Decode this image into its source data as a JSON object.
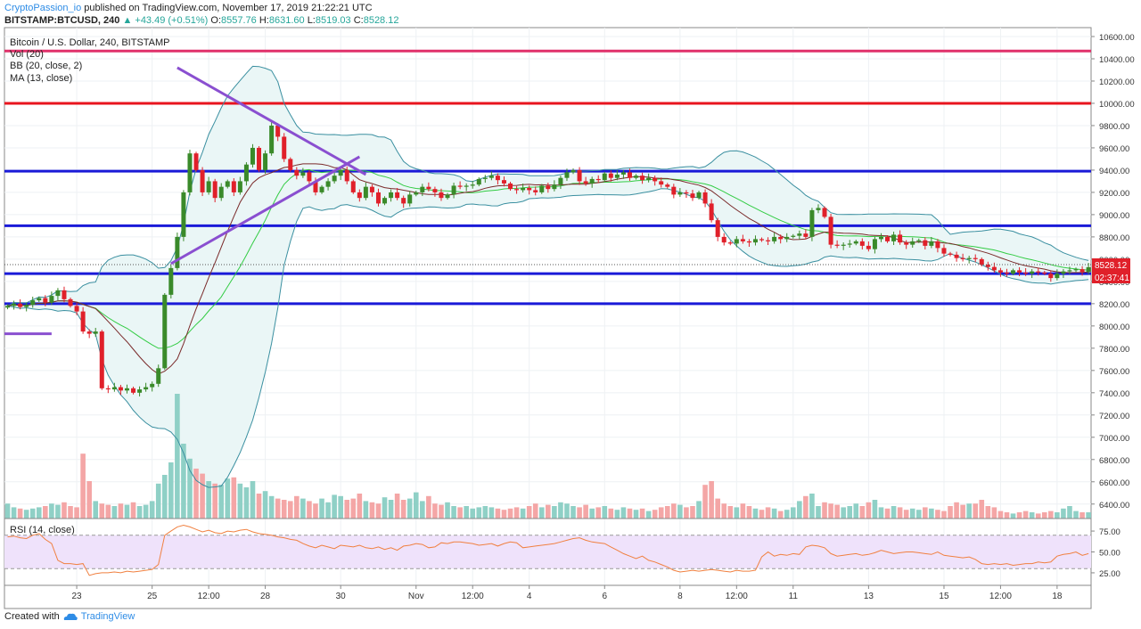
{
  "header": {
    "author": "CryptoPassion_io",
    "published": "published on TradingView.com, November 17, 2019 21:22:21 UTC",
    "symbol": "BITSTAMP:BTCUSD, 240",
    "change": "+43.49 (+0.51%)",
    "open_label": "O:",
    "open": "8557.76",
    "high_label": "H:",
    "high": "8631.60",
    "low_label": "L:",
    "low": "8519.03",
    "close_label": "C:",
    "close": "8528.12"
  },
  "legend": {
    "title": "Bitcoin / U.S. Dollar, 240, BITSTAMP",
    "vol": "Vol (20)",
    "bb": "BB (20, close, 2)",
    "ma": "MA (13, close)",
    "rsi": "RSI (14, close)"
  },
  "price_tag": "8528.12",
  "time_tag": "02:37:41",
  "footer": {
    "created_with": "Created with",
    "brand": "TradingView"
  },
  "colors": {
    "up": "#26a69a",
    "down": "#ef5350",
    "candle_up": "#3a8a2a",
    "candle_down": "#e0202a",
    "support_blue": "#1a1ad8",
    "resistance_red": "#e8141e",
    "resistance_pink": "#e0306a",
    "trendline": "#8a4fd0",
    "ma": "#7a2a2a",
    "bb_mid": "#33cc44",
    "bb_band": "#3a8fa0",
    "rsi_line": "#f08040",
    "rsi_fill": "#efe2fb"
  },
  "chart_data": {
    "type": "candlestick",
    "title": "Bitcoin / U.S. Dollar, 240, BITSTAMP",
    "y_ticks": [
      6400,
      6600,
      6800,
      7000,
      7200,
      7400,
      7600,
      7800,
      8000,
      8200,
      8400,
      8600,
      8800,
      9000,
      9200,
      9400,
      9600,
      9800,
      10000,
      10200,
      10400,
      10600
    ],
    "y_tick_labels": [
      "6400.00",
      "6600.00",
      "6800.00",
      "7000.00",
      "7200.00",
      "7400.00",
      "7600.00",
      "7800.00",
      "8000.00",
      "8200.00",
      "8400.00",
      "8600.00",
      "8800.00",
      "9000.00",
      "9200.00",
      "9400.00",
      "9600.00",
      "9800.00",
      "10000.00",
      "10200.00",
      "10400.00",
      "10600.00"
    ],
    "ylim": [
      6270,
      10680
    ],
    "x_ticks": [
      {
        "label": "23",
        "bar": 11
      },
      {
        "label": "25",
        "bar": 23
      },
      {
        "label": "12:00",
        "bar": 32
      },
      {
        "label": "28",
        "bar": 41
      },
      {
        "label": "30",
        "bar": 53
      },
      {
        "label": "Nov",
        "bar": 65
      },
      {
        "label": "12:00",
        "bar": 74
      },
      {
        "label": "4",
        "bar": 83
      },
      {
        "label": "6",
        "bar": 95
      },
      {
        "label": "8",
        "bar": 107
      },
      {
        "label": "12:00",
        "bar": 116
      },
      {
        "label": "11",
        "bar": 125
      },
      {
        "label": "13",
        "bar": 137
      },
      {
        "label": "15",
        "bar": 149
      },
      {
        "label": "12:00",
        "bar": 158
      },
      {
        "label": "18",
        "bar": 167
      }
    ],
    "horizontal_levels": [
      {
        "price": 10470,
        "color": "resistance_pink"
      },
      {
        "price": 10000,
        "color": "resistance_red"
      },
      {
        "price": 9390,
        "color": "support_blue"
      },
      {
        "price": 8900,
        "color": "support_blue"
      },
      {
        "price": 8470,
        "color": "support_blue"
      },
      {
        "price": 8200,
        "color": "support_blue"
      }
    ],
    "close": [
      8180,
      8200,
      8170,
      8190,
      8230,
      8250,
      8210,
      8270,
      8320,
      8240,
      8180,
      8130,
      7950,
      7930,
      7950,
      7440,
      7430,
      7450,
      7420,
      7440,
      7400,
      7430,
      7450,
      7480,
      7620,
      8280,
      8520,
      8800,
      9200,
      9550,
      9400,
      9200,
      9300,
      9150,
      9250,
      9300,
      9200,
      9300,
      9450,
      9600,
      9400,
      9550,
      9800,
      9700,
      9500,
      9400,
      9350,
      9380,
      9300,
      9200,
      9250,
      9300,
      9350,
      9400,
      9300,
      9200,
      9150,
      9250,
      9200,
      9100,
      9150,
      9200,
      9150,
      9100,
      9180,
      9200,
      9250,
      9230,
      9200,
      9150,
      9180,
      9260,
      9250,
      9260,
      9270,
      9320,
      9330,
      9350,
      9310,
      9280,
      9230,
      9220,
      9240,
      9220,
      9200,
      9260,
      9230,
      9270,
      9330,
      9380,
      9400,
      9300,
      9280,
      9320,
      9310,
      9370,
      9330,
      9360,
      9380,
      9330,
      9350,
      9310,
      9330,
      9300,
      9270,
      9250,
      9180,
      9200,
      9190,
      9150,
      9200,
      9100,
      8950,
      8800,
      8750,
      8740,
      8780,
      8760,
      8750,
      8780,
      8770,
      8760,
      8800,
      8780,
      8800,
      8810,
      8830,
      8800,
      9040,
      9060,
      8980,
      8730,
      8720,
      8730,
      8740,
      8760,
      8720,
      8690,
      8780,
      8800,
      8760,
      8820,
      8750,
      8730,
      8760,
      8770,
      8720,
      8760,
      8700,
      8650,
      8640,
      8610,
      8600,
      8610,
      8600,
      8550,
      8530,
      8500,
      8480,
      8470,
      8500,
      8480,
      8470,
      8490,
      8480,
      8470,
      8430,
      8470,
      8490,
      8500,
      8510,
      8485,
      8528
    ],
    "volume_relative": [
      0.12,
      0.09,
      0.08,
      0.07,
      0.08,
      0.09,
      0.1,
      0.12,
      0.11,
      0.13,
      0.1,
      0.09,
      0.52,
      0.3,
      0.14,
      0.12,
      0.11,
      0.1,
      0.12,
      0.11,
      0.13,
      0.1,
      0.11,
      0.14,
      0.28,
      0.35,
      0.45,
      1.0,
      0.6,
      0.48,
      0.4,
      0.36,
      0.3,
      0.28,
      0.27,
      0.32,
      0.33,
      0.28,
      0.25,
      0.3,
      0.2,
      0.22,
      0.18,
      0.16,
      0.15,
      0.14,
      0.18,
      0.16,
      0.14,
      0.12,
      0.16,
      0.13,
      0.19,
      0.18,
      0.15,
      0.16,
      0.2,
      0.14,
      0.13,
      0.12,
      0.17,
      0.15,
      0.2,
      0.15,
      0.16,
      0.21,
      0.14,
      0.18,
      0.12,
      0.11,
      0.13,
      0.1,
      0.09,
      0.1,
      0.08,
      0.09,
      0.1,
      0.09,
      0.08,
      0.07,
      0.08,
      0.09,
      0.08,
      0.1,
      0.12,
      0.09,
      0.11,
      0.1,
      0.13,
      0.12,
      0.1,
      0.09,
      0.11,
      0.08,
      0.09,
      0.1,
      0.08,
      0.07,
      0.09,
      0.08,
      0.07,
      0.08,
      0.06,
      0.07,
      0.09,
      0.1,
      0.12,
      0.11,
      0.09,
      0.1,
      0.14,
      0.27,
      0.3,
      0.16,
      0.12,
      0.1,
      0.09,
      0.12,
      0.1,
      0.08,
      0.07,
      0.09,
      0.08,
      0.06,
      0.07,
      0.09,
      0.14,
      0.18,
      0.2,
      0.1,
      0.13,
      0.12,
      0.11,
      0.09,
      0.1,
      0.12,
      0.1,
      0.13,
      0.15,
      0.09,
      0.08,
      0.1,
      0.09,
      0.07,
      0.08,
      0.07,
      0.09,
      0.08,
      0.07,
      0.06,
      0.1,
      0.13,
      0.11,
      0.12,
      0.12,
      0.15,
      0.1,
      0.09,
      0.06,
      0.05,
      0.04,
      0.05,
      0.06,
      0.05,
      0.04,
      0.05,
      0.06,
      0.05,
      0.08,
      0.1,
      0.06,
      0.05,
      0.05
    ],
    "rsi_ticks": [
      25,
      50,
      75
    ],
    "rsi_tick_labels": [
      "25.00",
      "50.00",
      "75.00"
    ],
    "rsi_band": [
      30,
      70
    ],
    "rsi": [
      68,
      69,
      67,
      66,
      70,
      72,
      65,
      60,
      40,
      36,
      36,
      35,
      36,
      22,
      24,
      25,
      25,
      26,
      25,
      27,
      26,
      27,
      28,
      29,
      35,
      70,
      75,
      80,
      82,
      80,
      77,
      74,
      76,
      73,
      72,
      75,
      74,
      76,
      77,
      74,
      72,
      71,
      70,
      68,
      67,
      65,
      64,
      60,
      57,
      55,
      58,
      56,
      54,
      58,
      57,
      56,
      58,
      55,
      54,
      56,
      53,
      55,
      52,
      57,
      58,
      60,
      59,
      55,
      56,
      61,
      60,
      62,
      62,
      61,
      60,
      58,
      59,
      60,
      57,
      60,
      62,
      61,
      55,
      56,
      57,
      58,
      59,
      60,
      62,
      64,
      66,
      67,
      64,
      62,
      61,
      60,
      56,
      52,
      48,
      45,
      42,
      45,
      40,
      38,
      35,
      32,
      28,
      26,
      27,
      28,
      27,
      28,
      29,
      28,
      27,
      26,
      28,
      27,
      27,
      28,
      44,
      50,
      45,
      47,
      46,
      48,
      47,
      56,
      58,
      57,
      55,
      48,
      45,
      46,
      47,
      48,
      46,
      47,
      49,
      52,
      50,
      48,
      49,
      50,
      50,
      49,
      48,
      47,
      50,
      46,
      45,
      44,
      43,
      44,
      41,
      36,
      35,
      36,
      35,
      36,
      34,
      35,
      36,
      36,
      38,
      37,
      38,
      45,
      47,
      48,
      50,
      46,
      48
    ]
  }
}
